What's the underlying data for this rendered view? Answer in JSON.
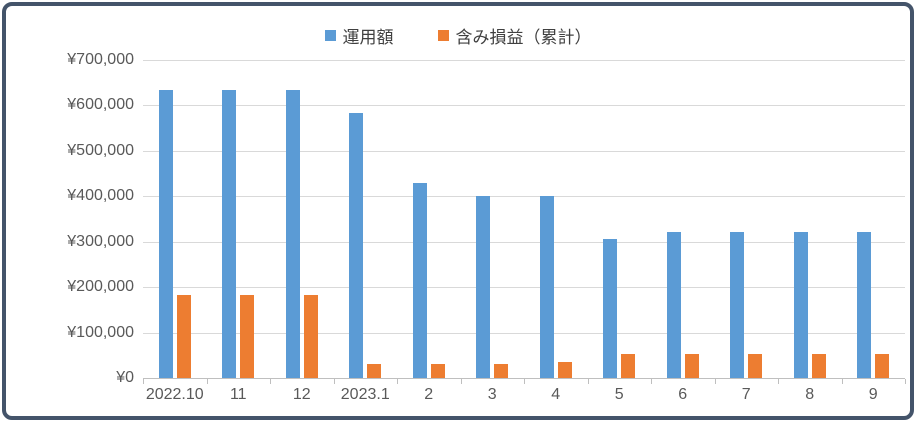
{
  "chart_data": {
    "type": "bar",
    "title": "",
    "categories": [
      "2022.10",
      "11",
      "12",
      "2023.1",
      "2",
      "3",
      "4",
      "5",
      "6",
      "7",
      "8",
      "9"
    ],
    "series": [
      {
        "name": "運用額",
        "color": "#5B9BD5",
        "values": [
          633000,
          633000,
          633000,
          583000,
          430000,
          400000,
          400000,
          305000,
          322000,
          322000,
          322000,
          322000
        ]
      },
      {
        "name": "含み損益（累計）",
        "color": "#ED7D31",
        "values": [
          182000,
          182000,
          182000,
          30000,
          30000,
          30000,
          35000,
          52000,
          52000,
          52000,
          52000,
          52000
        ]
      }
    ],
    "xlabel": "",
    "ylabel": "",
    "ylim": [
      0,
      700000
    ],
    "y_tick_labels": [
      "¥700,000",
      "¥600,000",
      "¥500,000",
      "¥400,000",
      "¥300,000",
      "¥200,000",
      "¥100,000",
      "¥0"
    ],
    "grid": true,
    "legend_position": "top"
  },
  "legend": {
    "items": [
      {
        "label": "運用額",
        "color": "#5B9BD5"
      },
      {
        "label": "含み損益（累計）",
        "color": "#ED7D31"
      }
    ]
  },
  "colors": {
    "bar_blue": "#5B9BD5",
    "bar_orange": "#ED7D31",
    "gridline": "#D9D9D9",
    "axis_line": "#BFBFBF",
    "axis_text": "#595959",
    "legend_text": "#404040",
    "frame_border": "#44546A",
    "background": "#FFFFFF"
  }
}
